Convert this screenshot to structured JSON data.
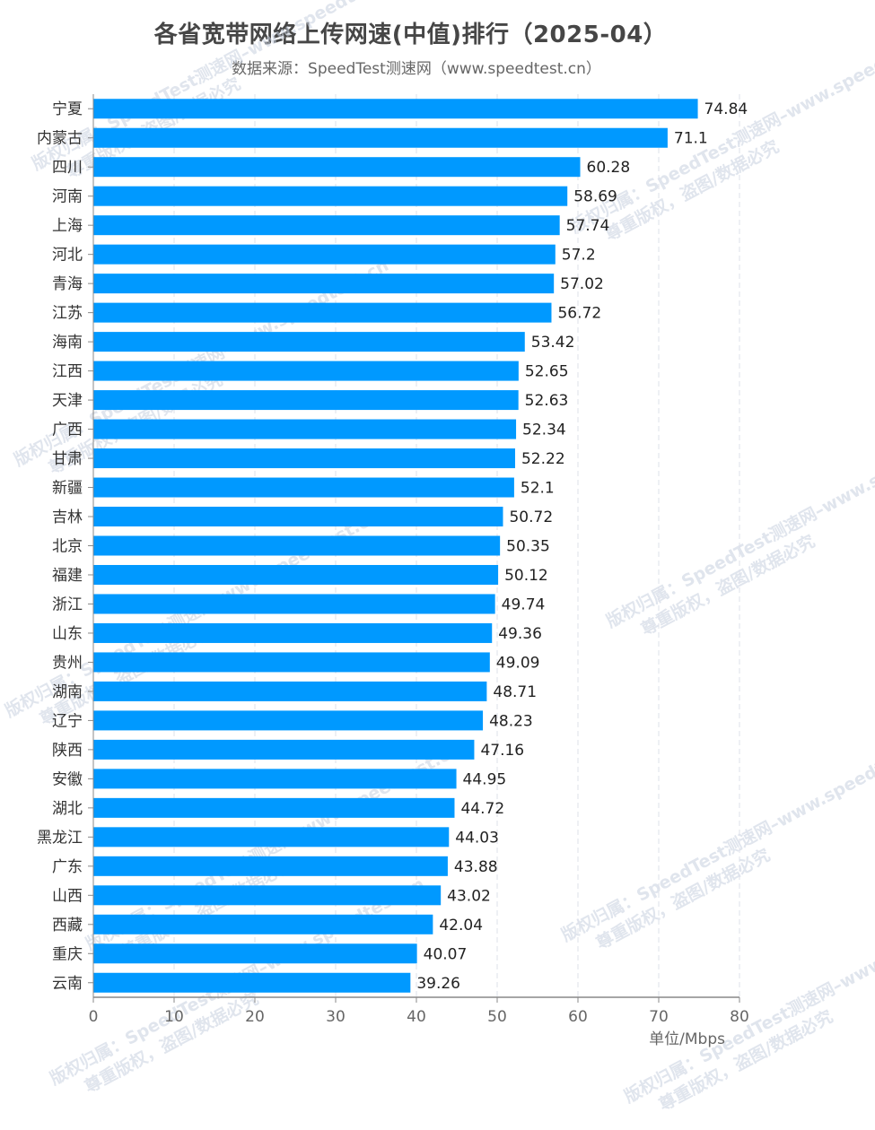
{
  "chart_data": {
    "type": "bar",
    "orientation": "horizontal",
    "title": "各省宽带网络上传网速(中值)排行（2025-04）",
    "subtitle": "数据来源：SpeedTest测速网（www.speedtest.cn）",
    "categories": [
      "宁夏",
      "内蒙古",
      "四川",
      "河南",
      "上海",
      "河北",
      "青海",
      "江苏",
      "海南",
      "江西",
      "天津",
      "广西",
      "甘肃",
      "新疆",
      "吉林",
      "北京",
      "福建",
      "浙江",
      "山东",
      "贵州",
      "湖南",
      "辽宁",
      "陕西",
      "安徽",
      "湖北",
      "黑龙江",
      "广东",
      "山西",
      "西藏",
      "重庆",
      "云南"
    ],
    "values": [
      74.84,
      71.1,
      60.28,
      58.69,
      57.74,
      57.2,
      57.02,
      56.72,
      53.42,
      52.65,
      52.63,
      52.34,
      52.22,
      52.1,
      50.72,
      50.35,
      50.12,
      49.74,
      49.36,
      49.09,
      48.71,
      48.23,
      47.16,
      44.95,
      44.72,
      44.03,
      43.88,
      43.02,
      42.04,
      40.07,
      39.26
    ],
    "value_labels": [
      "74.84",
      "71.1",
      "60.28",
      "58.69",
      "57.74",
      "57.2",
      "57.02",
      "56.72",
      "53.42",
      "52.65",
      "52.63",
      "52.34",
      "52.22",
      "52.1",
      "50.72",
      "50.35",
      "50.12",
      "49.74",
      "49.36",
      "49.09",
      "48.71",
      "48.23",
      "47.16",
      "44.95",
      "44.72",
      "44.03",
      "43.88",
      "43.02",
      "42.04",
      "40.07",
      "39.26"
    ],
    "xlim": [
      0,
      80
    ],
    "xticks": [
      "0",
      "10",
      "20",
      "30",
      "40",
      "50",
      "60",
      "70",
      "80"
    ],
    "xlabel": "单位/Mbps",
    "ylabel": "",
    "grid": "vertical dashed",
    "legend": "none",
    "bar_color": "#0099ff"
  },
  "watermark": {
    "line1": "版权归属：SpeedTest测速网–www.speedtest.cn",
    "line2": "尊重版权，盗图/数据必究"
  }
}
